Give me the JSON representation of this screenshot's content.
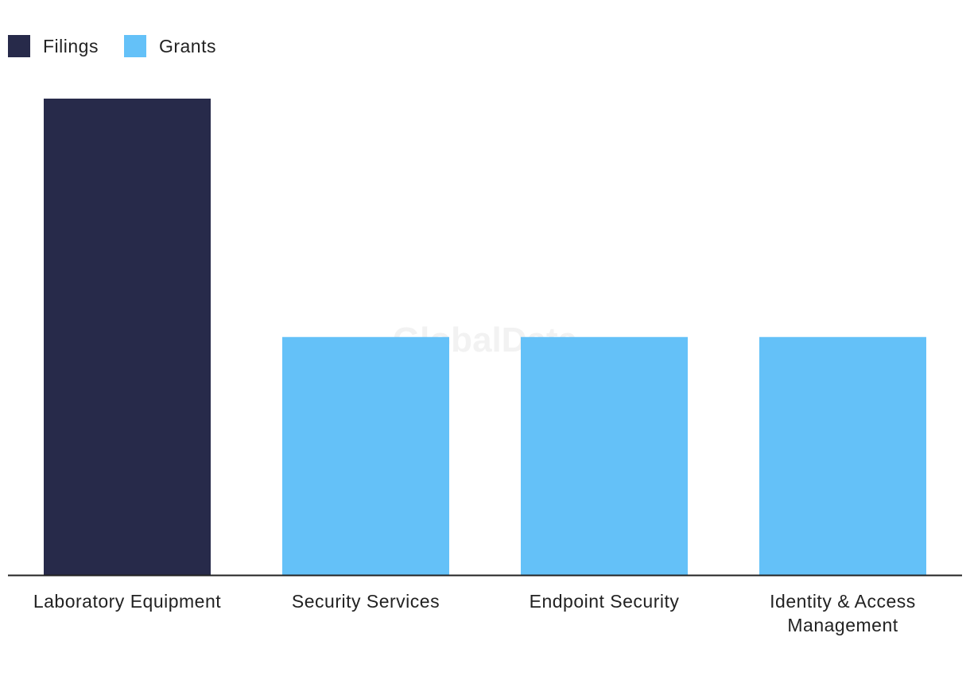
{
  "watermark": "GlobalData",
  "legend": {
    "items": [
      {
        "label": "Filings",
        "color": "#272a4a"
      },
      {
        "label": "Grants",
        "color": "#64c1f8"
      }
    ]
  },
  "chart_data": {
    "type": "bar",
    "categories": [
      [
        "Laboratory Equipment"
      ],
      [
        "Security Services"
      ],
      [
        "Endpoint Security"
      ],
      [
        "Identity & Access",
        "Management"
      ]
    ],
    "series": [
      {
        "name": "Filings",
        "color": "#272a4a",
        "values": [
          2,
          0,
          0,
          0
        ]
      },
      {
        "name": "Grants",
        "color": "#64c1f8",
        "values": [
          0,
          1,
          1,
          1
        ]
      }
    ],
    "ylim": [
      0,
      2
    ],
    "grid": false,
    "legend_position": "top-left"
  }
}
